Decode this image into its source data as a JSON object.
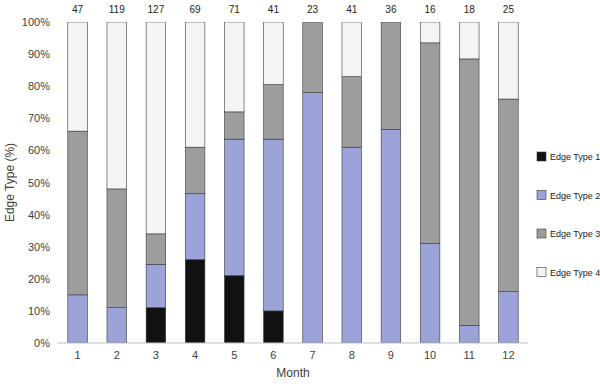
{
  "chart_data": {
    "type": "bar",
    "stacked": true,
    "grid": false,
    "legend": "right",
    "x_label": "Month",
    "y_label": "Edge Type (%)",
    "categories": [
      "1",
      "2",
      "3",
      "4",
      "5",
      "6",
      "7",
      "8",
      "9",
      "10",
      "11",
      "12"
    ],
    "counts": [
      47,
      119,
      127,
      69,
      71,
      41,
      23,
      41,
      36,
      16,
      18,
      25
    ],
    "ylim": [
      0,
      100
    ],
    "yticks": [
      {
        "value": 0,
        "label": "0%"
      },
      {
        "value": 10,
        "label": "10%"
      },
      {
        "value": 20,
        "label": "20%"
      },
      {
        "value": 30,
        "label": "30%"
      },
      {
        "value": 40,
        "label": "40%"
      },
      {
        "value": 50,
        "label": "50%"
      },
      {
        "value": 60,
        "label": "60%"
      },
      {
        "value": 70,
        "label": "70%"
      },
      {
        "value": 80,
        "label": "80%"
      },
      {
        "value": 90,
        "label": "90%"
      },
      {
        "value": 100,
        "label": "100%"
      }
    ],
    "series": [
      {
        "name": "Edge Type 1",
        "color": "#111111",
        "values": [
          0,
          0,
          11,
          26,
          21,
          10,
          0,
          0,
          0,
          0,
          0,
          0
        ]
      },
      {
        "name": "Edge Type 2",
        "color": "#9ba3d8",
        "values": [
          15,
          11,
          13.5,
          20.5,
          42.5,
          53.5,
          78,
          61,
          66.5,
          31,
          5.5,
          16
        ]
      },
      {
        "name": "Edge Type 3",
        "color": "#9d9d9d",
        "values": [
          51,
          37,
          9.5,
          14.5,
          8.5,
          17,
          22,
          22,
          33.5,
          62.5,
          83,
          60
        ]
      },
      {
        "name": "Edge Type 4",
        "color": "#f4f4f4",
        "values": [
          34,
          52,
          66,
          39,
          28,
          19.5,
          0,
          17,
          0,
          6.5,
          11.5,
          24
        ]
      }
    ]
  }
}
